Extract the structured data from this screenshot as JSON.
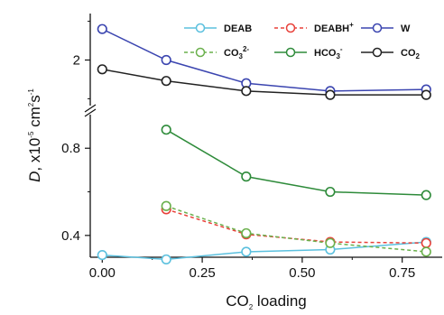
{
  "chart_data": {
    "type": "line",
    "xlabel": {
      "main": "CO",
      "sub": "2",
      "rest": " loading"
    },
    "ylabel": {
      "main": "D",
      "rest": ", x10",
      "sup1": "-5",
      "rest2": " cm",
      "sup2": "2",
      "rest3": "s",
      "sup3": "-1"
    },
    "x_ticks": [
      "0.00",
      "0.25",
      "0.50",
      "0.75"
    ],
    "xlim": [
      -0.03,
      0.85
    ],
    "upper_panel": {
      "ylim": [
        1.4,
        2.6
      ],
      "y_ticks": [
        "2"
      ]
    },
    "lower_panel": {
      "ylim": [
        0.3,
        0.95
      ],
      "y_ticks": [
        "0.4",
        "0.8"
      ]
    },
    "axis_break": true,
    "legend_position": "top-right",
    "series": [
      {
        "name": "DEAB",
        "sup": "",
        "sub": "",
        "color": "#5bc0de",
        "dash": false,
        "panel": "lower",
        "x": [
          0.0,
          0.16,
          0.36,
          0.57,
          0.81
        ],
        "y": [
          0.31,
          0.29,
          0.325,
          0.335,
          0.37
        ]
      },
      {
        "name": "DEABH",
        "sup": "+",
        "sub": "",
        "color": "#e8413a",
        "dash": true,
        "panel": "lower",
        "x": [
          0.16,
          0.36,
          0.57,
          0.81
        ],
        "y": [
          0.52,
          0.405,
          0.37,
          0.365
        ]
      },
      {
        "name": "W",
        "sup": "",
        "sub": "",
        "color": "#3b45b0",
        "dash": false,
        "panel": "upper",
        "x": [
          0.0,
          0.16,
          0.36,
          0.57,
          0.81
        ],
        "y": [
          2.4,
          2.0,
          1.7,
          1.6,
          1.62
        ]
      },
      {
        "name": "CO",
        "sup": "2-",
        "sub": "3",
        "color": "#6ab04c",
        "dash": true,
        "panel": "lower",
        "x": [
          0.16,
          0.36,
          0.57,
          0.81
        ],
        "y": [
          0.535,
          0.41,
          0.365,
          0.325
        ]
      },
      {
        "name": "HCO",
        "sup": "-",
        "sub": "3",
        "color": "#2e8b3a",
        "dash": false,
        "panel": "lower",
        "x": [
          0.16,
          0.36,
          0.57,
          0.81
        ],
        "y": [
          0.885,
          0.67,
          0.6,
          0.585
        ]
      },
      {
        "name": "CO",
        "sup": "",
        "sub": "2",
        "color": "#222222",
        "dash": false,
        "panel": "upper",
        "x": [
          0.0,
          0.16,
          0.36,
          0.57,
          0.81
        ],
        "y": [
          1.88,
          1.73,
          1.6,
          1.55,
          1.55
        ]
      }
    ]
  }
}
